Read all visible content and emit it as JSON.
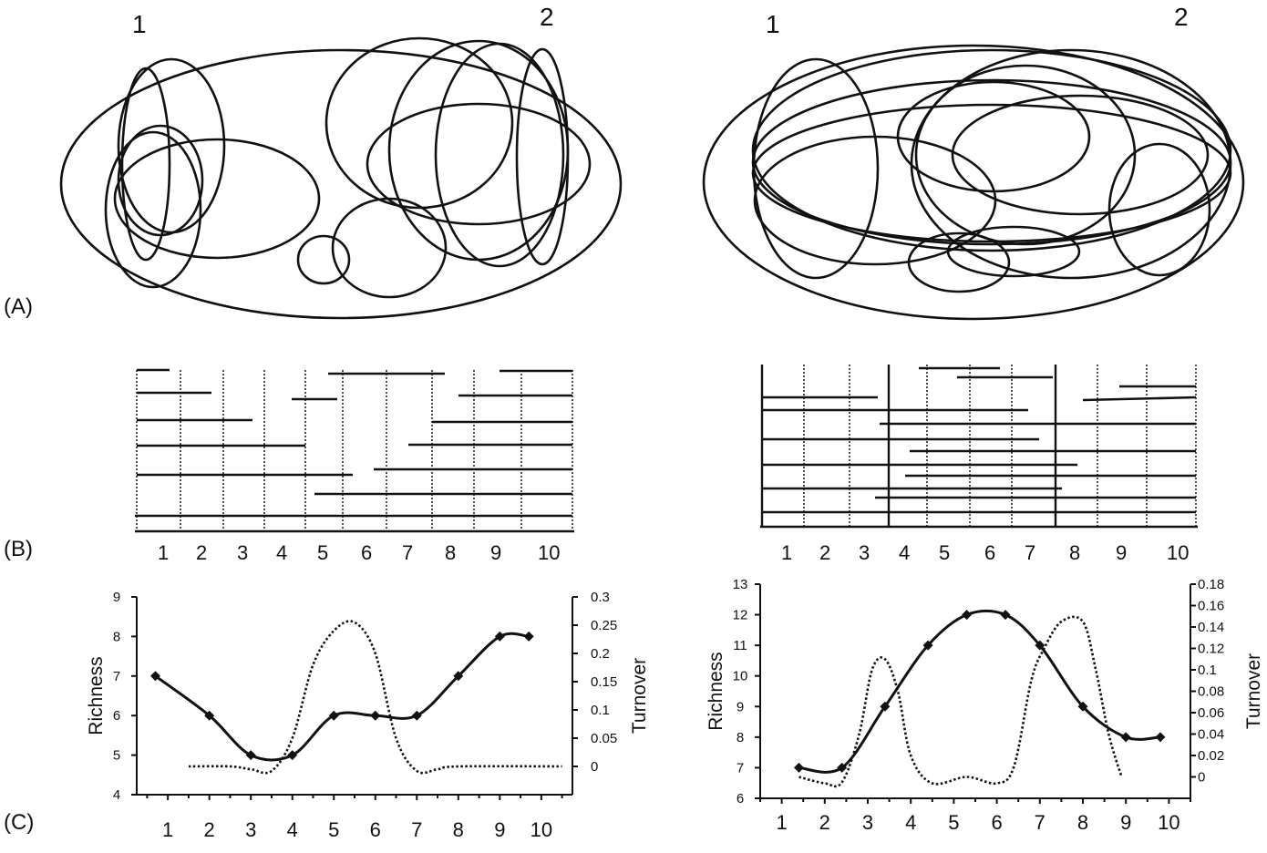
{
  "panel_labels": {
    "a": "(A)",
    "b": "(B)",
    "c": "(C)"
  },
  "panel_a": {
    "left": {
      "marker_1": "1",
      "marker_2": "2"
    },
    "right": {
      "marker_1": "1",
      "marker_2": "2"
    }
  },
  "chart_data": [
    {
      "type": "line",
      "panel": "C-left",
      "x": [
        1,
        2,
        3,
        4,
        5,
        6,
        7,
        8,
        9,
        10
      ],
      "xticks": [
        "1",
        "2",
        "3",
        "4",
        "5",
        "6",
        "7",
        "8",
        "9",
        "10"
      ],
      "ylabel": "Richness",
      "y2label": "Turnover",
      "ylim": [
        4,
        9
      ],
      "yticks": [
        "4",
        "5",
        "6",
        "7",
        "8",
        "9"
      ],
      "y2lim": [
        -0.05,
        0.3
      ],
      "y2ticks": [
        "0",
        "0.05",
        "0.1",
        "0.15",
        "0.2",
        "0.25",
        "0.3"
      ],
      "series": [
        {
          "role": "richness",
          "style": "solid-with-diamonds",
          "x": [
            0.7,
            2,
            3,
            4,
            5,
            6,
            7,
            8,
            9,
            9.7
          ],
          "values": [
            7,
            6,
            5,
            5,
            6,
            6,
            6,
            7,
            8,
            8
          ]
        },
        {
          "role": "turnover",
          "style": "dotted",
          "x": [
            1.5,
            2.5,
            3,
            3.5,
            4,
            4.5,
            5,
            5.5,
            6,
            6.5,
            7,
            7.5,
            8,
            10.5
          ],
          "values": [
            0,
            0,
            -0.005,
            -0.008,
            0.05,
            0.18,
            0.24,
            0.255,
            0.2,
            0.05,
            -0.008,
            -0.005,
            0,
            0
          ]
        }
      ]
    },
    {
      "type": "line",
      "panel": "C-right",
      "x": [
        1,
        2,
        3,
        4,
        5,
        6,
        7,
        8,
        9,
        10
      ],
      "xticks": [
        "1",
        "2",
        "3",
        "4",
        "5",
        "6",
        "7",
        "8",
        "9",
        "10"
      ],
      "ylabel": "Richness",
      "y2label": "Turnover",
      "ylim": [
        6,
        13
      ],
      "yticks": [
        "6",
        "7",
        "8",
        "9",
        "10",
        "11",
        "12",
        "13"
      ],
      "y2lim": [
        -0.02,
        0.18
      ],
      "y2ticks": [
        "0",
        "0.02",
        "0.04",
        "0.06",
        "0.08",
        "0.1",
        "0.12",
        "0.14",
        "0.16",
        "0.18"
      ],
      "series": [
        {
          "role": "richness",
          "style": "solid-with-diamonds",
          "x": [
            1.4,
            2.4,
            3.4,
            4.4,
            5.3,
            6.2,
            7,
            8,
            9,
            9.8
          ],
          "values": [
            7,
            7,
            9,
            11,
            12,
            12,
            11,
            9,
            8,
            8
          ]
        },
        {
          "role": "turnover",
          "style": "dotted",
          "x": [
            1.4,
            2,
            2.4,
            2.8,
            3.1,
            3.4,
            3.7,
            4,
            4.5,
            5.3,
            6,
            6.4,
            6.8,
            7.1,
            7.5,
            8,
            8.3,
            8.6,
            8.9
          ],
          "values": [
            0,
            -0.006,
            -0.005,
            0.04,
            0.1,
            0.11,
            0.08,
            0.02,
            -0.006,
            0.0,
            -0.006,
            0.01,
            0.09,
            0.12,
            0.145,
            0.145,
            0.1,
            0.04,
            0.0
          ]
        }
      ]
    }
  ]
}
